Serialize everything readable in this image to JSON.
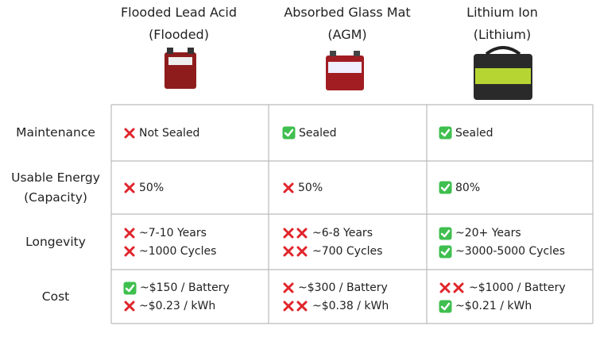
{
  "columns": [
    {
      "title": "Flooded Lead Acid",
      "subtitle": "(Flooded)"
    },
    {
      "title": "Absorbed Glass Mat",
      "subtitle": "(AGM)"
    },
    {
      "title": "Lithium Ion",
      "subtitle": "(Lithium)"
    }
  ],
  "rows": [
    {
      "label": [
        "Maintenance"
      ],
      "cells": [
        [
          "Not Sealed"
        ],
        [
          "Sealed"
        ],
        [
          "Sealed"
        ]
      ]
    },
    {
      "label": [
        "Usable Energy",
        "(Capacity)"
      ],
      "cells": [
        [
          "50%"
        ],
        [
          "50%"
        ],
        [
          "80%"
        ]
      ]
    },
    {
      "label": [
        "Longevity"
      ],
      "cells": [
        [
          "~7-10 Years",
          "~1000 Cycles"
        ],
        [
          "~6-8 Years",
          "~700 Cycles"
        ],
        [
          "~20+ Years",
          "~3000-5000 Cycles"
        ]
      ]
    },
    {
      "label": [
        "Cost"
      ],
      "cells": [
        [
          "~$150 / Battery",
          "~$0.23 / kWh"
        ],
        [
          "~$300 / Battery",
          "~$0.38 / kWh"
        ],
        [
          "~$1000 / Battery",
          "~$0.21 / kWh"
        ]
      ]
    }
  ]
}
